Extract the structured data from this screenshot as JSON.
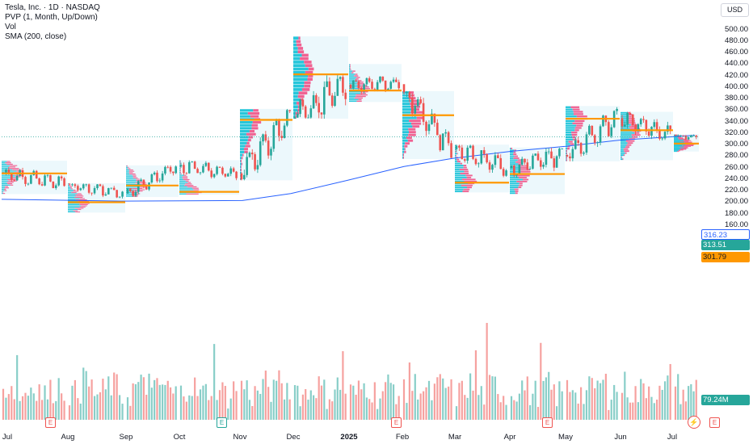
{
  "legend": {
    "title": "Tesla, Inc. · 1D · NASDAQ",
    "indicator_pvp": "PVP (1, Month, Up/Down)",
    "indicator_vol": "Vol",
    "indicator_sma": "SMA (200, close)"
  },
  "currency_label": "USD",
  "price_tags": {
    "sma_value": "316.23",
    "last_price": "313.51",
    "poc_value": "301.79",
    "volume_value": "79.24M"
  },
  "earnings_markers": [
    "E",
    "E",
    "E",
    "E",
    "E"
  ],
  "event_marker_icon": "lightning-icon",
  "colors": {
    "up": "#26a69a",
    "down": "#ef5350",
    "sma": "#2962ff",
    "poc": "#ff9800",
    "profile_up": "#26c6da",
    "profile_down": "#f06292",
    "box_fill": "#e6f6fb"
  },
  "chart_data": {
    "type": "candlestick",
    "title": "Tesla, Inc. · 1D · NASDAQ",
    "ylim": [
      155,
      505
    ],
    "y_ticks": [
      "500.00",
      "480.00",
      "460.00",
      "440.00",
      "420.00",
      "400.00",
      "380.00",
      "360.00",
      "340.00",
      "320.00",
      "300.00",
      "280.00",
      "260.00",
      "240.00",
      "220.00",
      "200.00",
      "180.00",
      "160.00"
    ],
    "x_ticks": [
      "Jul",
      "Aug",
      "Sep",
      "Oct",
      "Nov",
      "Dec",
      "2025",
      "Feb",
      "Mar",
      "Apr",
      "May",
      "Jun",
      "Jul"
    ],
    "sma_200_last": 316.23,
    "last_close": 313.51,
    "last_volume": "79.24M",
    "monthly_anchors": [
      {
        "month": "Jul",
        "open": 250,
        "close": 232,
        "high": 272,
        "low": 214,
        "poc": 250
      },
      {
        "month": "Aug",
        "open": 232,
        "close": 215,
        "high": 233,
        "low": 182,
        "poc": 200
      },
      {
        "month": "Sep",
        "open": 215,
        "close": 262,
        "high": 264,
        "low": 209,
        "poc": 229
      },
      {
        "month": "Oct",
        "open": 262,
        "close": 250,
        "high": 273,
        "low": 213,
        "poc": 218
      },
      {
        "month": "Nov",
        "open": 250,
        "close": 345,
        "high": 362,
        "low": 238,
        "poc": 343
      },
      {
        "month": "Dec",
        "open": 345,
        "close": 404,
        "high": 488,
        "low": 345,
        "poc": 422
      },
      {
        "month": "Jan",
        "open": 404,
        "close": 405,
        "high": 440,
        "low": 374,
        "poc": 394
      },
      {
        "month": "Feb",
        "open": 405,
        "close": 292,
        "high": 393,
        "low": 275,
        "poc": 351
      },
      {
        "month": "Mar",
        "open": 292,
        "close": 259,
        "high": 300,
        "low": 217,
        "poc": 234
      },
      {
        "month": "Apr",
        "open": 259,
        "close": 282,
        "high": 295,
        "low": 214,
        "poc": 249
      },
      {
        "month": "May",
        "open": 282,
        "close": 346,
        "high": 367,
        "low": 271,
        "poc": 345
      },
      {
        "month": "Jun",
        "open": 346,
        "close": 317,
        "high": 357,
        "low": 273,
        "poc": 325
      },
      {
        "month": "Jul",
        "open": 317,
        "close": 313.51,
        "high": 318,
        "low": 288,
        "poc": 301.79
      }
    ]
  }
}
